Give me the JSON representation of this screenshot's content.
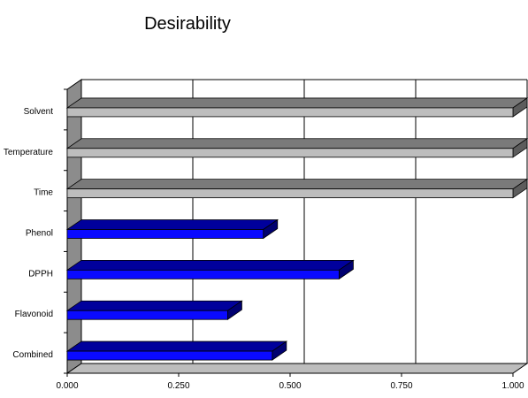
{
  "chart_data": {
    "type": "bar",
    "orientation": "horizontal",
    "style": "3d",
    "title": "Desirability",
    "xlabel": "",
    "ylabel": "",
    "xlim": [
      0,
      1
    ],
    "x_ticks": [
      "0.000",
      "0.250",
      "0.500",
      "0.750",
      "1.000"
    ],
    "grid": true,
    "legend": "none",
    "categories": [
      "Solvent",
      "Temperature",
      "Time",
      "Phenol",
      "DPPH",
      "Flavonoid",
      "Combined"
    ],
    "values": [
      1.0,
      1.0,
      1.0,
      0.44,
      0.61,
      0.36,
      0.46
    ],
    "bar_colors": {
      "Solvent": "gray",
      "Temperature": "gray",
      "Time": "gray",
      "Phenol": "blue",
      "DPPH": "blue",
      "Flavonoid": "blue",
      "Combined": "blue"
    }
  },
  "colors": {
    "gray_front": "#bdbdbd",
    "gray_top": "#7a7a7a",
    "gray_side": "#5c5c5c",
    "blue_front": "#0a0aff",
    "blue_top": "#00009c",
    "blue_side": "#000070",
    "wall": "#8c8c8c",
    "floor": "#bdbdbd",
    "grid": "#000000"
  }
}
